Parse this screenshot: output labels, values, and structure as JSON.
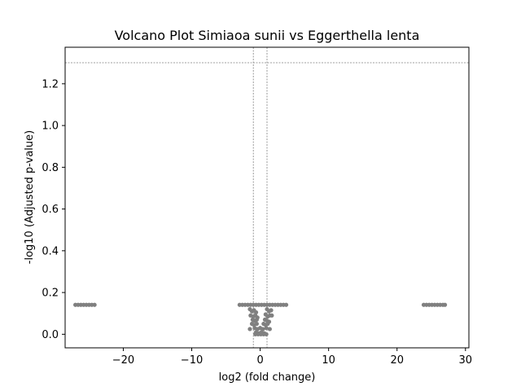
{
  "chart_data": {
    "type": "scatter",
    "title": "Volcano Plot Simiaoa sunii vs Eggerthella lenta",
    "xlabel": "log2 (fold change)",
    "ylabel": "-log10 (Adjusted p-value)",
    "xlim": [
      -28.5,
      30.5
    ],
    "ylim": [
      -0.065,
      1.375
    ],
    "x_ticks": [
      -20,
      -10,
      0,
      10,
      20,
      30
    ],
    "x_tick_labels": [
      "−20",
      "−10",
      "0",
      "10",
      "20",
      "30"
    ],
    "y_ticks": [
      0.0,
      0.2,
      0.4,
      0.6,
      0.8,
      1.0,
      1.2
    ],
    "y_tick_labels": [
      "0.0",
      "0.2",
      "0.4",
      "0.6",
      "0.8",
      "1.0",
      "1.2"
    ],
    "grid": false,
    "legend": "none",
    "point_color": "#808080",
    "reference_lines": {
      "color": "#808080",
      "style": "dashed",
      "vertical_x": [
        -1,
        1
      ],
      "horizontal_y": [
        1.301
      ]
    },
    "series": [
      {
        "points": [
          [
            -27.0,
            0.141
          ],
          [
            -26.6,
            0.141
          ],
          [
            -26.2,
            0.141
          ],
          [
            -25.8,
            0.141
          ],
          [
            -25.4,
            0.141
          ],
          [
            -25.0,
            0.141
          ],
          [
            -24.6,
            0.141
          ],
          [
            -24.2,
            0.141
          ],
          [
            23.9,
            0.141
          ],
          [
            24.3,
            0.141
          ],
          [
            24.7,
            0.141
          ],
          [
            25.1,
            0.141
          ],
          [
            25.5,
            0.141
          ],
          [
            25.9,
            0.141
          ],
          [
            26.3,
            0.141
          ],
          [
            26.7,
            0.141
          ],
          [
            27.0,
            0.141
          ],
          [
            -3.0,
            0.141
          ],
          [
            -2.6,
            0.141
          ],
          [
            -2.2,
            0.141
          ],
          [
            -1.8,
            0.141
          ],
          [
            -1.4,
            0.141
          ],
          [
            -1.0,
            0.141
          ],
          [
            -0.6,
            0.141
          ],
          [
            -0.2,
            0.141
          ],
          [
            0.2,
            0.141
          ],
          [
            0.6,
            0.141
          ],
          [
            1.0,
            0.141
          ],
          [
            1.4,
            0.141
          ],
          [
            1.8,
            0.141
          ],
          [
            2.2,
            0.141
          ],
          [
            2.6,
            0.141
          ],
          [
            3.0,
            0.141
          ],
          [
            3.4,
            0.141
          ],
          [
            3.8,
            0.141
          ],
          [
            -1.5,
            0.12
          ],
          [
            -1.2,
            0.11
          ],
          [
            -0.9,
            0.115
          ],
          [
            -0.6,
            0.105
          ],
          [
            1.0,
            0.12
          ],
          [
            1.3,
            0.11
          ],
          [
            1.6,
            0.115
          ],
          [
            -1.4,
            0.09
          ],
          [
            -1.0,
            0.085
          ],
          [
            -0.7,
            0.09
          ],
          [
            -0.4,
            0.08
          ],
          [
            0.8,
            0.095
          ],
          [
            1.1,
            0.085
          ],
          [
            1.4,
            0.09
          ],
          [
            1.7,
            0.09
          ],
          [
            -1.1,
            0.07
          ],
          [
            -0.8,
            0.065
          ],
          [
            -0.5,
            0.07
          ],
          [
            0.7,
            0.07
          ],
          [
            1.0,
            0.065
          ],
          [
            1.3,
            0.06
          ],
          [
            -1.2,
            0.05
          ],
          [
            -0.9,
            0.045
          ],
          [
            -0.5,
            0.05
          ],
          [
            0.5,
            0.05
          ],
          [
            0.8,
            0.045
          ],
          [
            1.1,
            0.05
          ],
          [
            -1.5,
            0.025
          ],
          [
            -0.8,
            0.03
          ],
          [
            -0.4,
            0.025
          ],
          [
            0.0,
            0.03
          ],
          [
            0.4,
            0.025
          ],
          [
            0.9,
            0.03
          ],
          [
            1.4,
            0.025
          ],
          [
            -0.6,
            0.01
          ],
          [
            -0.2,
            0.005
          ],
          [
            0.2,
            0.01
          ],
          [
            0.6,
            0.005
          ],
          [
            -0.7,
            0.0
          ],
          [
            -0.3,
            0.0
          ],
          [
            0.1,
            0.0
          ],
          [
            0.5,
            0.0
          ],
          [
            0.9,
            0.0
          ]
        ]
      }
    ]
  }
}
